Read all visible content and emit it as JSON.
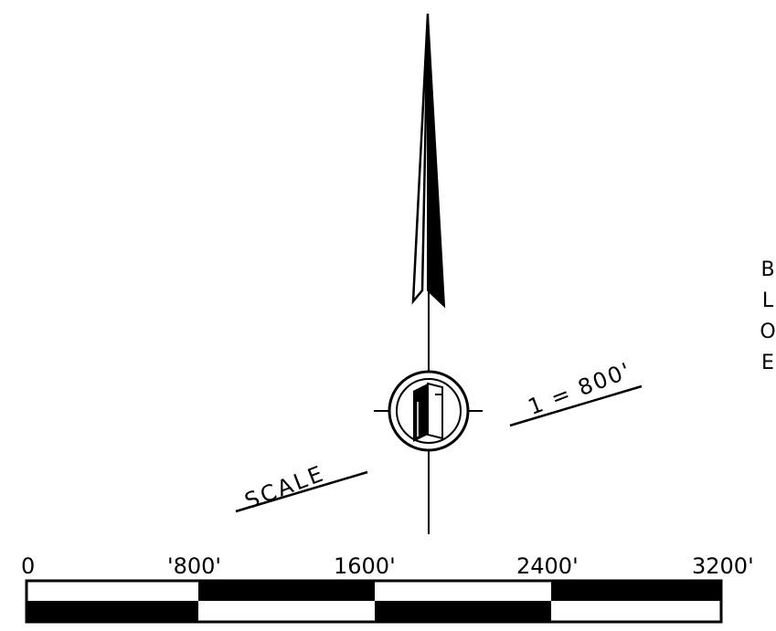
{
  "colors": {
    "ink": "#000000",
    "paper": "#ffffff"
  },
  "compass": {
    "icon": "north-arrow-icon",
    "scale_label": "SCALE",
    "ratio_label": "1 = 800'"
  },
  "side_text": [
    "B",
    "L",
    "O",
    "E"
  ],
  "scale_bar": {
    "labels": [
      "0",
      "'800'",
      "1600'",
      "2400'",
      "3200'"
    ],
    "segments": 4,
    "unit": "feet",
    "top_pattern": [
      "white",
      "black",
      "white",
      "black"
    ],
    "bottom_pattern": [
      "black",
      "white",
      "black",
      "white"
    ]
  }
}
